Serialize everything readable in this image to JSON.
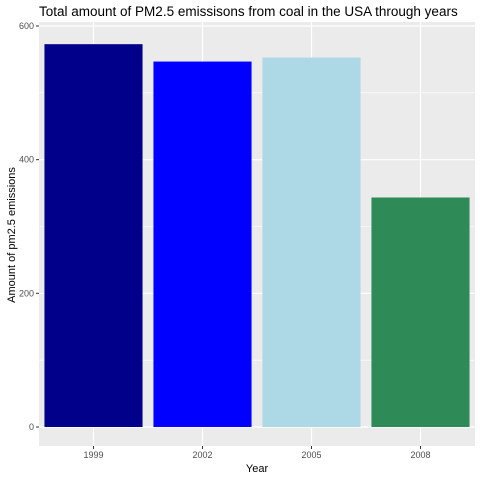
{
  "chart_data": {
    "type": "bar",
    "title": "Total amount of PM2.5 emissisons from coal in the USA through years",
    "xlabel": "Year",
    "ylabel": "Amount of pm2.5 emissions",
    "categories": [
      "1999",
      "2002",
      "2005",
      "2008"
    ],
    "values": [
      572.8,
      546.8,
      552.8,
      343.4
    ],
    "colors": [
      "#00008B",
      "#0000FF",
      "#ADD8E6",
      "#2E8B57"
    ],
    "ylim": [
      0,
      600
    ],
    "yticks": [
      0,
      200,
      400,
      600
    ],
    "grid": true,
    "panel_background": "#EBEBEB",
    "grid_color": "#FFFFFF",
    "legend": "none"
  }
}
